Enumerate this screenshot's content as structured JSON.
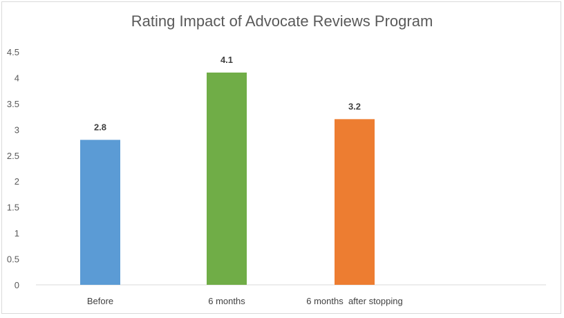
{
  "chart_data": {
    "type": "bar",
    "title": "Rating Impact of Advocate Reviews Program",
    "xlabel": "",
    "ylabel": "",
    "categories": [
      "Before",
      "6 months",
      "6 months  after stopping"
    ],
    "values": [
      2.8,
      4.1,
      3.2
    ],
    "data_labels": [
      "2.8",
      "4.1",
      "3.2"
    ],
    "colors": [
      "#5b9bd5",
      "#70ad47",
      "#ed7d31"
    ],
    "ylim": [
      0,
      4.5
    ],
    "yticks": [
      "0",
      "0.5",
      "1",
      "1.5",
      "2",
      "2.5",
      "3",
      "3.5",
      "4",
      "4.5"
    ],
    "grid": false,
    "legend": "none"
  }
}
